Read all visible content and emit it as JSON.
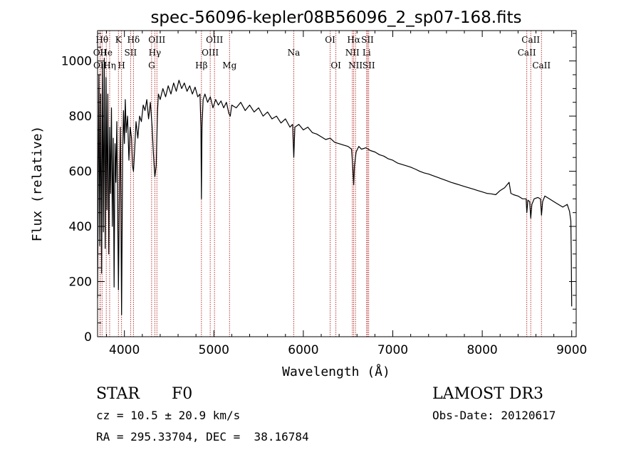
{
  "chart_data": {
    "type": "line",
    "title": "spec-56096-kepler08B56096_2_sp07-168.fits",
    "xlabel": "Wavelength (Å)",
    "ylabel": "Flux (relative)",
    "xlim": [
      3700,
      9050
    ],
    "ylim": [
      0,
      1110
    ],
    "x_ticks": [
      4000,
      5000,
      6000,
      7000,
      8000,
      9000
    ],
    "y_ticks": [
      0,
      200,
      400,
      600,
      800,
      1000
    ],
    "x_tick_labels": [
      "4000",
      "5000",
      "6000",
      "7000",
      "8000",
      "9000"
    ],
    "y_tick_labels": [
      "0",
      "200",
      "400",
      "600",
      "800",
      "1000"
    ],
    "line_color": "#000000",
    "marker_color": "#b22222",
    "spectrum": [
      [
        3700,
        140
      ],
      [
        3715,
        950
      ],
      [
        3725,
        330
      ],
      [
        3735,
        880
      ],
      [
        3745,
        230
      ],
      [
        3755,
        990
      ],
      [
        3765,
        380
      ],
      [
        3775,
        1010
      ],
      [
        3785,
        320
      ],
      [
        3795,
        940
      ],
      [
        3805,
        460
      ],
      [
        3815,
        880
      ],
      [
        3825,
        300
      ],
      [
        3835,
        760
      ],
      [
        3845,
        520
      ],
      [
        3855,
        830
      ],
      [
        3865,
        400
      ],
      [
        3875,
        720
      ],
      [
        3885,
        180
      ],
      [
        3895,
        700
      ],
      [
        3905,
        560
      ],
      [
        3915,
        780
      ],
      [
        3925,
        430
      ],
      [
        3933,
        170
      ],
      [
        3945,
        560
      ],
      [
        3955,
        760
      ],
      [
        3968,
        80
      ],
      [
        3980,
        660
      ],
      [
        3990,
        820
      ],
      [
        4000,
        700
      ],
      [
        4010,
        860
      ],
      [
        4020,
        740
      ],
      [
        4035,
        800
      ],
      [
        4050,
        640
      ],
      [
        4065,
        760
      ],
      [
        4080,
        720
      ],
      [
        4090,
        620
      ],
      [
        4101,
        600
      ],
      [
        4115,
        680
      ],
      [
        4130,
        780
      ],
      [
        4150,
        720
      ],
      [
        4170,
        800
      ],
      [
        4190,
        780
      ],
      [
        4210,
        840
      ],
      [
        4230,
        820
      ],
      [
        4250,
        860
      ],
      [
        4270,
        790
      ],
      [
        4290,
        850
      ],
      [
        4310,
        760
      ],
      [
        4325,
        660
      ],
      [
        4340,
        580
      ],
      [
        4355,
        620
      ],
      [
        4370,
        820
      ],
      [
        4380,
        880
      ],
      [
        4400,
        860
      ],
      [
        4430,
        900
      ],
      [
        4460,
        870
      ],
      [
        4490,
        910
      ],
      [
        4520,
        880
      ],
      [
        4550,
        920
      ],
      [
        4580,
        890
      ],
      [
        4610,
        930
      ],
      [
        4640,
        900
      ],
      [
        4670,
        920
      ],
      [
        4700,
        890
      ],
      [
        4730,
        910
      ],
      [
        4760,
        880
      ],
      [
        4790,
        905
      ],
      [
        4820,
        870
      ],
      [
        4845,
        880
      ],
      [
        4855,
        760
      ],
      [
        4861,
        500
      ],
      [
        4867,
        760
      ],
      [
        4880,
        860
      ],
      [
        4900,
        880
      ],
      [
        4930,
        850
      ],
      [
        4960,
        870
      ],
      [
        4990,
        830
      ],
      [
        5020,
        860
      ],
      [
        5050,
        840
      ],
      [
        5080,
        855
      ],
      [
        5110,
        830
      ],
      [
        5140,
        850
      ],
      [
        5167,
        810
      ],
      [
        5183,
        800
      ],
      [
        5200,
        840
      ],
      [
        5250,
        830
      ],
      [
        5300,
        850
      ],
      [
        5350,
        820
      ],
      [
        5400,
        840
      ],
      [
        5450,
        815
      ],
      [
        5500,
        830
      ],
      [
        5550,
        800
      ],
      [
        5600,
        815
      ],
      [
        5650,
        790
      ],
      [
        5700,
        800
      ],
      [
        5750,
        775
      ],
      [
        5800,
        790
      ],
      [
        5850,
        760
      ],
      [
        5880,
        770
      ],
      [
        5893,
        650
      ],
      [
        5905,
        760
      ],
      [
        5950,
        770
      ],
      [
        6000,
        750
      ],
      [
        6050,
        760
      ],
      [
        6100,
        740
      ],
      [
        6150,
        735
      ],
      [
        6200,
        725
      ],
      [
        6250,
        715
      ],
      [
        6300,
        720
      ],
      [
        6350,
        705
      ],
      [
        6400,
        700
      ],
      [
        6450,
        695
      ],
      [
        6500,
        690
      ],
      [
        6540,
        680
      ],
      [
        6555,
        600
      ],
      [
        6563,
        550
      ],
      [
        6572,
        620
      ],
      [
        6590,
        670
      ],
      [
        6620,
        690
      ],
      [
        6650,
        680
      ],
      [
        6700,
        685
      ],
      [
        6750,
        675
      ],
      [
        6800,
        670
      ],
      [
        6850,
        660
      ],
      [
        6900,
        655
      ],
      [
        6950,
        645
      ],
      [
        7000,
        640
      ],
      [
        7050,
        630
      ],
      [
        7100,
        625
      ],
      [
        7150,
        620
      ],
      [
        7200,
        615
      ],
      [
        7250,
        608
      ],
      [
        7300,
        600
      ],
      [
        7350,
        594
      ],
      [
        7400,
        590
      ],
      [
        7450,
        584
      ],
      [
        7500,
        578
      ],
      [
        7550,
        572
      ],
      [
        7600,
        566
      ],
      [
        7650,
        560
      ],
      [
        7700,
        555
      ],
      [
        7750,
        550
      ],
      [
        7800,
        545
      ],
      [
        7850,
        540
      ],
      [
        7900,
        535
      ],
      [
        7950,
        530
      ],
      [
        8000,
        525
      ],
      [
        8050,
        520
      ],
      [
        8100,
        518
      ],
      [
        8150,
        515
      ],
      [
        8200,
        530
      ],
      [
        8250,
        540
      ],
      [
        8300,
        560
      ],
      [
        8320,
        520
      ],
      [
        8350,
        515
      ],
      [
        8400,
        510
      ],
      [
        8450,
        500
      ],
      [
        8490,
        500
      ],
      [
        8498,
        450
      ],
      [
        8510,
        495
      ],
      [
        8530,
        490
      ],
      [
        8542,
        430
      ],
      [
        8555,
        480
      ],
      [
        8580,
        500
      ],
      [
        8620,
        505
      ],
      [
        8650,
        500
      ],
      [
        8662,
        440
      ],
      [
        8675,
        490
      ],
      [
        8700,
        510
      ],
      [
        8750,
        500
      ],
      [
        8800,
        490
      ],
      [
        8850,
        480
      ],
      [
        8900,
        470
      ],
      [
        8950,
        480
      ],
      [
        8975,
        455
      ],
      [
        8990,
        420
      ],
      [
        8995,
        300
      ],
      [
        9000,
        110
      ]
    ],
    "line_markers": [
      {
        "label": "Hθ",
        "wavelength": 3750,
        "row": 1
      },
      {
        "label": "OII",
        "wavelength": 3727,
        "row": 2
      },
      {
        "label": "OII",
        "wavelength": 3729,
        "row": 3
      },
      {
        "label": "He",
        "wavelength": 3797,
        "row": 2
      },
      {
        "label": "Hη",
        "wavelength": 3835,
        "row": 3
      },
      {
        "label": "K",
        "wavelength": 3933,
        "row": 1
      },
      {
        "label": "SII",
        "wavelength": 4069,
        "row": 2
      },
      {
        "label": "H",
        "wavelength": 3968,
        "row": 3
      },
      {
        "label": "Hδ",
        "wavelength": 4101,
        "row": 1
      },
      {
        "label": "OIII",
        "wavelength": 4363,
        "row": 1
      },
      {
        "label": "Hγ",
        "wavelength": 4340,
        "row": 2
      },
      {
        "label": "G",
        "wavelength": 4304,
        "row": 3
      },
      {
        "label": "Hβ",
        "wavelength": 4861,
        "row": 3
      },
      {
        "label": "OIII",
        "wavelength": 4959,
        "row": 2
      },
      {
        "label": "OIII",
        "wavelength": 5007,
        "row": 1
      },
      {
        "label": "Mg",
        "wavelength": 5175,
        "row": 3
      },
      {
        "label": "Na",
        "wavelength": 5893,
        "row": 2
      },
      {
        "label": "OI",
        "wavelength": 6300,
        "row": 1
      },
      {
        "label": "OI",
        "wavelength": 6364,
        "row": 3
      },
      {
        "label": "Hα",
        "wavelength": 6563,
        "row": 1
      },
      {
        "label": "NII",
        "wavelength": 6548,
        "row": 2
      },
      {
        "label": "NII",
        "wavelength": 6583,
        "row": 3
      },
      {
        "label": "SII",
        "wavelength": 6717,
        "row": 1
      },
      {
        "label": "Li",
        "wavelength": 6708,
        "row": 2
      },
      {
        "label": "SII",
        "wavelength": 6731,
        "row": 3
      },
      {
        "label": "CaII",
        "wavelength": 8542,
        "row": 1
      },
      {
        "label": "CaII",
        "wavelength": 8498,
        "row": 2
      },
      {
        "label": "CaII",
        "wavelength": 8662,
        "row": 3
      }
    ]
  },
  "info": {
    "object_class": "STAR",
    "subclass": "F0",
    "survey": "LAMOST DR3",
    "cz": "cz = 10.5 ± 20.9 km/s",
    "obs_date": "Obs-Date: 20120617",
    "coords": "RA = 295.33704, DEC =  38.16784"
  }
}
